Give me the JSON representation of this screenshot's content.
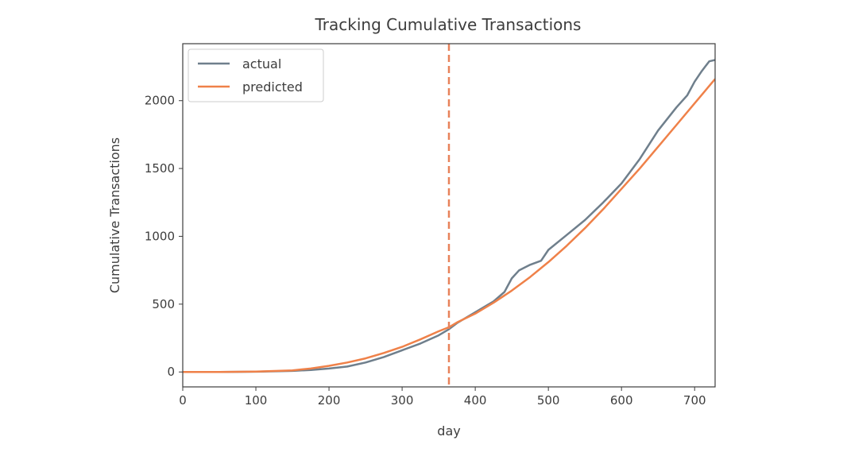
{
  "chart_data": {
    "type": "line",
    "title": "Tracking Cumulative Transactions",
    "xlabel": "day",
    "ylabel": "Cumulative Transactions",
    "xlim": [
      0,
      728
    ],
    "ylim": [
      -110,
      2420
    ],
    "xticks": [
      0,
      100,
      200,
      300,
      400,
      500,
      600,
      700
    ],
    "yticks": [
      0,
      500,
      1000,
      1500,
      2000
    ],
    "grid": false,
    "legend_position": "top-left",
    "vline": {
      "x": 364,
      "color": "#e8825a",
      "style": "dashed"
    },
    "series": [
      {
        "name": "actual",
        "color": "#6f7f8c",
        "x": [
          0,
          50,
          100,
          150,
          175,
          200,
          225,
          250,
          275,
          300,
          325,
          350,
          364,
          375,
          400,
          425,
          440,
          450,
          460,
          475,
          490,
          500,
          525,
          550,
          575,
          600,
          625,
          650,
          675,
          690,
          700,
          710,
          720,
          728
        ],
        "y": [
          0,
          0,
          2,
          8,
          15,
          25,
          40,
          70,
          110,
          160,
          210,
          270,
          315,
          360,
          440,
          520,
          590,
          690,
          750,
          790,
          820,
          900,
          1010,
          1120,
          1250,
          1390,
          1570,
          1780,
          1950,
          2040,
          2140,
          2220,
          2290,
          2300
        ]
      },
      {
        "name": "predicted",
        "color": "#ef8149",
        "x": [
          0,
          50,
          100,
          150,
          175,
          200,
          225,
          250,
          275,
          300,
          325,
          350,
          364,
          375,
          400,
          425,
          450,
          475,
          500,
          525,
          550,
          575,
          600,
          625,
          650,
          675,
          700,
          728
        ],
        "y": [
          0,
          0,
          3,
          12,
          25,
          45,
          70,
          100,
          140,
          185,
          240,
          300,
          330,
          365,
          430,
          510,
          600,
          700,
          810,
          930,
          1060,
          1200,
          1350,
          1500,
          1660,
          1820,
          1980,
          2160
        ]
      }
    ]
  }
}
